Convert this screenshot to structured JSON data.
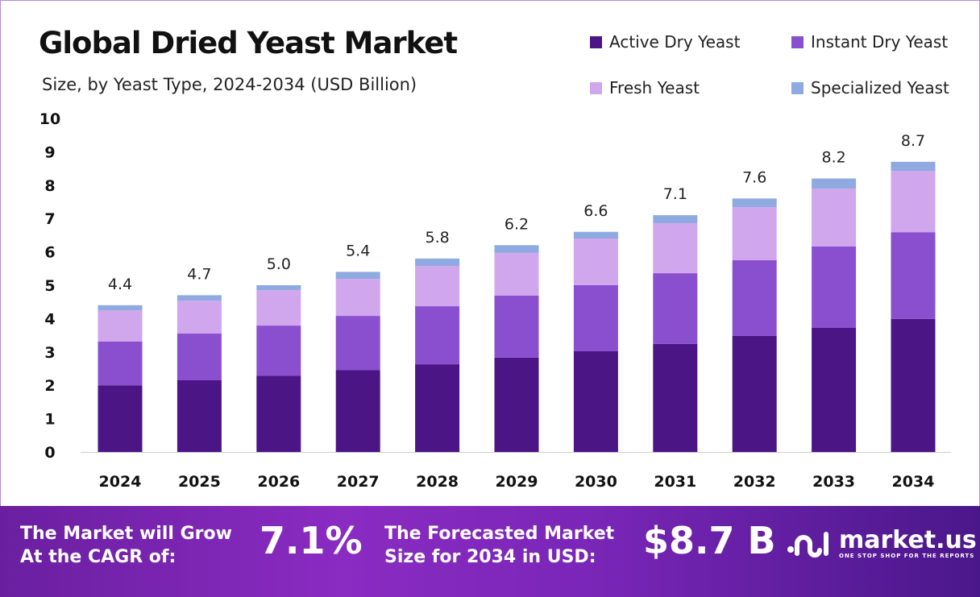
{
  "chart_data": {
    "type": "bar",
    "stacked": true,
    "title": "Global Dried Yeast Market",
    "subtitle": "Size, by Yeast Type, 2024-2034 (USD Billion)",
    "categories": [
      "2024",
      "2025",
      "2026",
      "2027",
      "2028",
      "2029",
      "2030",
      "2031",
      "2032",
      "2033",
      "2034"
    ],
    "series": [
      {
        "name": "Active Dry Yeast",
        "color": "#4b1585",
        "values": [
          2.0,
          2.15,
          2.29,
          2.46,
          2.63,
          2.83,
          3.02,
          3.24,
          3.48,
          3.72,
          3.99
        ]
      },
      {
        "name": "Instant Dry Yeast",
        "color": "#8a4fcf",
        "values": [
          1.31,
          1.4,
          1.5,
          1.62,
          1.74,
          1.86,
          1.98,
          2.12,
          2.27,
          2.44,
          2.6
        ]
      },
      {
        "name": "Fresh Yeast",
        "color": "#d0a6ec",
        "values": [
          0.94,
          0.99,
          1.06,
          1.11,
          1.21,
          1.28,
          1.4,
          1.5,
          1.59,
          1.74,
          1.84
        ]
      },
      {
        "name": "Specialized Yeast",
        "color": "#8faae0",
        "values": [
          0.15,
          0.16,
          0.15,
          0.21,
          0.22,
          0.23,
          0.2,
          0.24,
          0.26,
          0.3,
          0.27
        ]
      }
    ],
    "totals": [
      "4.4",
      "4.7",
      "5.0",
      "5.4",
      "5.8",
      "6.2",
      "6.6",
      "7.1",
      "7.6",
      "8.2",
      "8.7"
    ],
    "yticks": [
      "0",
      "1",
      "2",
      "3",
      "4",
      "5",
      "6",
      "7",
      "8",
      "9",
      "10"
    ],
    "ylim": [
      0,
      10
    ],
    "grid": false,
    "legend_position": "top-right"
  },
  "footer": {
    "cagr_label_1": "The Market will Grow",
    "cagr_label_2": "At the CAGR of:",
    "cagr_value": "7.1%",
    "forecast_label_1": "The Forecasted Market",
    "forecast_label_2": "Size for 2034 in USD:",
    "forecast_value": "$8.7 B",
    "brand": "market.us",
    "tagline": "ONE STOP SHOP FOR THE REPORTS"
  }
}
